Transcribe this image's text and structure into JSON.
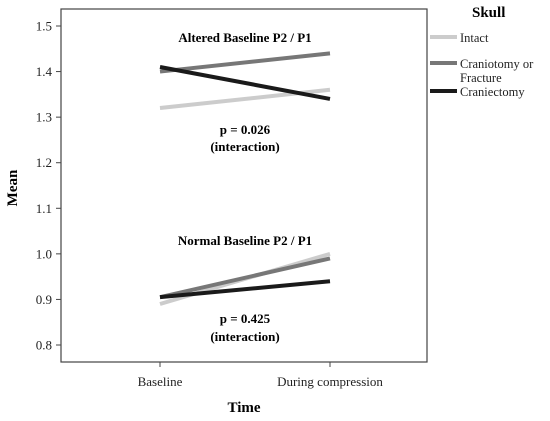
{
  "chart_data": {
    "type": "line",
    "xlabel": "Time",
    "ylabel": "Mean",
    "categories": [
      "Baseline",
      "During compression"
    ],
    "ylim": [
      0.77,
      1.55
    ],
    "yticks": [
      0.8,
      0.9,
      1.0,
      1.1,
      1.2,
      1.3,
      1.4,
      1.5
    ],
    "ytick_labels": [
      "0.8",
      "0.9",
      "1.0",
      "1.1",
      "1.2",
      "1.3",
      "1.4",
      "1.5"
    ],
    "grid": false,
    "legend": {
      "title": "Skull",
      "placement": "right, outside plot",
      "entries": [
        {
          "lines": [
            "Intact"
          ],
          "color": "#cccccc"
        },
        {
          "lines": [
            "Craniotomy or",
            "Fracture"
          ],
          "color": "#777777"
        },
        {
          "lines": [
            "Craniectomy"
          ],
          "color": "#1a1a1a"
        }
      ]
    },
    "panels": [
      {
        "heading": "Altered Baseline P2 / P1",
        "p_value": "p = 0.026",
        "note": "(interaction)",
        "series": [
          {
            "name": "Intact",
            "color": "#cccccc",
            "values": [
              1.32,
              1.36
            ]
          },
          {
            "name": "Craniotomy or Fracture",
            "color": "#777777",
            "values": [
              1.4,
              1.44
            ]
          },
          {
            "name": "Craniectomy",
            "color": "#1a1a1a",
            "values": [
              1.41,
              1.34
            ]
          }
        ]
      },
      {
        "heading": "Normal Baseline P2 / P1",
        "p_value": "p = 0.425",
        "note": "(interaction)",
        "series": [
          {
            "name": "Intact",
            "color": "#cccccc",
            "values": [
              0.89,
              1.0
            ]
          },
          {
            "name": "Craniotomy or Fracture",
            "color": "#777777",
            "values": [
              0.905,
              0.99
            ]
          },
          {
            "name": "Craniectomy",
            "color": "#1a1a1a",
            "values": [
              0.905,
              0.94
            ]
          }
        ]
      }
    ]
  }
}
